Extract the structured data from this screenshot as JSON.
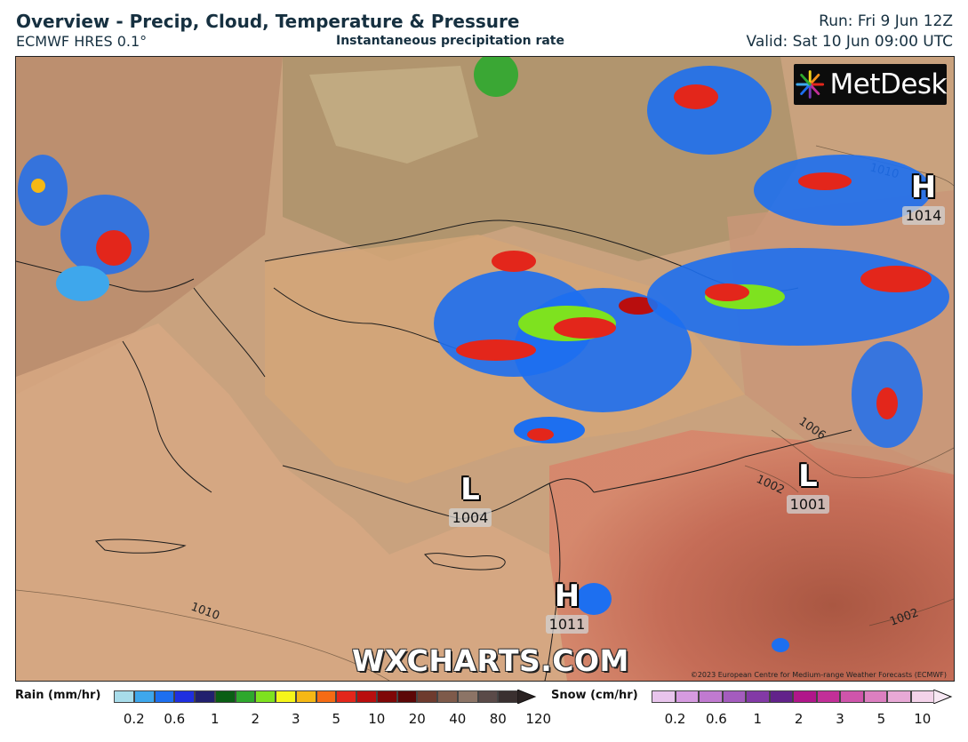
{
  "header": {
    "title": "Overview - Precip, Cloud, Temperature & Pressure",
    "model": "ECMWF HRES 0.1°",
    "subtitle": "Instantaneous precipitation rate",
    "run": "Run: Fri 9 Jun 12Z",
    "valid": "Valid: Sat 10 Jun 09:00 UTC"
  },
  "map": {
    "logo": "MetDesk",
    "watermark": "WXCHARTS.COM",
    "copyright": "©2023 European Centre for Medium-range Weather Forecasts (ECMWF)",
    "pressure_centers": [
      {
        "type": "H",
        "value": "1014"
      },
      {
        "type": "L",
        "value": "1004"
      },
      {
        "type": "L",
        "value": "1001"
      },
      {
        "type": "H",
        "value": "1011"
      }
    ],
    "isobar_labels": [
      "1010",
      "1006",
      "1002",
      "1002",
      "1010"
    ]
  },
  "legend": {
    "rain": {
      "label": "Rain (mm/hr)",
      "colors": [
        "#a8dcea",
        "#3ea7ec",
        "#1d6ff0",
        "#1f2fe0",
        "#21206e",
        "#0a5e14",
        "#2ea82d",
        "#7ee21f",
        "#f5f51a",
        "#f5b815",
        "#f56b14",
        "#e3261b",
        "#b90e0e",
        "#7f0707",
        "#5c0707",
        "#6e3b2e",
        "#7e5a4a",
        "#8c7466",
        "#5a4a48",
        "#3a3030"
      ],
      "ticks": [
        "0.2",
        "0.6",
        "1",
        "2",
        "3",
        "5",
        "10",
        "20",
        "40",
        "80",
        "120"
      ]
    },
    "snow": {
      "label": "Snow (cm/hr)",
      "colors": [
        "#e8c4ec",
        "#d69be0",
        "#c07ad0",
        "#a45cbe",
        "#833aa6",
        "#62228a",
        "#b0168a",
        "#c22f98",
        "#cf55ab",
        "#dc7fc0",
        "#e8a9d6",
        "#f4d3ea"
      ],
      "ticks": [
        "0.2",
        "0.6",
        "1",
        "2",
        "3",
        "5",
        "10"
      ]
    }
  }
}
